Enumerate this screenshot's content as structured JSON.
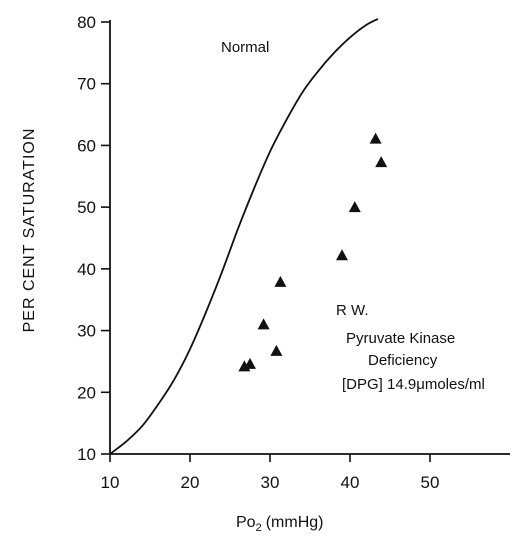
{
  "chart_data": {
    "type": "scatter",
    "title": "",
    "xlabel": "Po",
    "xlabel_subscript": "2",
    "xlabel_unit": "(mmHg)",
    "ylabel": "PER CENT SATURATION",
    "xlim": [
      10,
      60
    ],
    "ylim": [
      10,
      80
    ],
    "x_ticks": [
      10,
      20,
      30,
      40,
      50
    ],
    "y_ticks": [
      10,
      20,
      30,
      40,
      50,
      60,
      70,
      80
    ],
    "grid": false,
    "curve": {
      "label": "Normal",
      "x": [
        10,
        12,
        14,
        16,
        18,
        20,
        22,
        24,
        26,
        28,
        30,
        32,
        34,
        36,
        38,
        40,
        42,
        43.5
      ],
      "y": [
        10,
        12,
        14.5,
        18,
        22,
        27,
        33,
        39.5,
        46.5,
        53,
        59,
        64,
        68.5,
        72,
        75,
        77.5,
        79.5,
        80.5
      ]
    },
    "series": [
      {
        "marker": "triangle",
        "x": [
          26.8,
          27.5,
          29.2,
          30.8,
          31.3,
          39.0,
          40.6,
          43.2,
          43.9
        ],
        "y": [
          24.2,
          24.6,
          31.0,
          26.7,
          37.9,
          42.2,
          50.0,
          61.1,
          57.3
        ]
      }
    ],
    "annotation": {
      "line1": "R W.",
      "line2": "Pyruvate Kinase",
      "line3": "Deficiency",
      "line4": "[DPG] 14.9μmoles/ml"
    }
  }
}
